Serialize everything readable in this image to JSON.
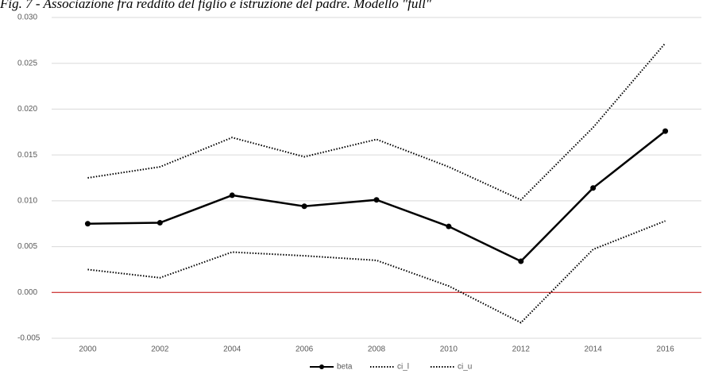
{
  "chart_data": {
    "type": "line",
    "title": "Fig. 7 - Associazione fra reddito del figlio e istruzione del padre. Modello \"full\"",
    "categories": [
      "2000",
      "2002",
      "2004",
      "2006",
      "2008",
      "2010",
      "2012",
      "2014",
      "2016"
    ],
    "series": [
      {
        "name": "beta",
        "color": "#000000",
        "line_style": "solid",
        "markers": true,
        "values": [
          0.0075,
          0.0076,
          0.0106,
          0.0094,
          0.0101,
          0.0072,
          0.0034,
          0.0114,
          0.0176
        ]
      },
      {
        "name": "ci_l",
        "color": "#000000",
        "line_style": "dotted",
        "markers": false,
        "values": [
          0.0025,
          0.0016,
          0.0044,
          0.004,
          0.0035,
          0.0007,
          -0.0033,
          0.0047,
          0.0078
        ]
      },
      {
        "name": "ci_u",
        "color": "#000000",
        "line_style": "dotted",
        "markers": false,
        "values": [
          0.0125,
          0.0137,
          0.0169,
          0.0148,
          0.0167,
          0.0137,
          0.0101,
          0.018,
          0.0272
        ]
      }
    ],
    "ylim": [
      -0.005,
      0.03
    ],
    "yticks": [
      -0.005,
      {
        "value": 0,
        "label": "0.000"
      },
      0.005,
      {
        "value": 0.01,
        "label": "0.010"
      },
      0.015,
      {
        "value": 0.02,
        "label": "0.020"
      },
      0.025,
      {
        "value": 0.03,
        "label": "0.030"
      }
    ],
    "grid": true,
    "zero_line_color": "#c00000",
    "legend": "bottom"
  }
}
